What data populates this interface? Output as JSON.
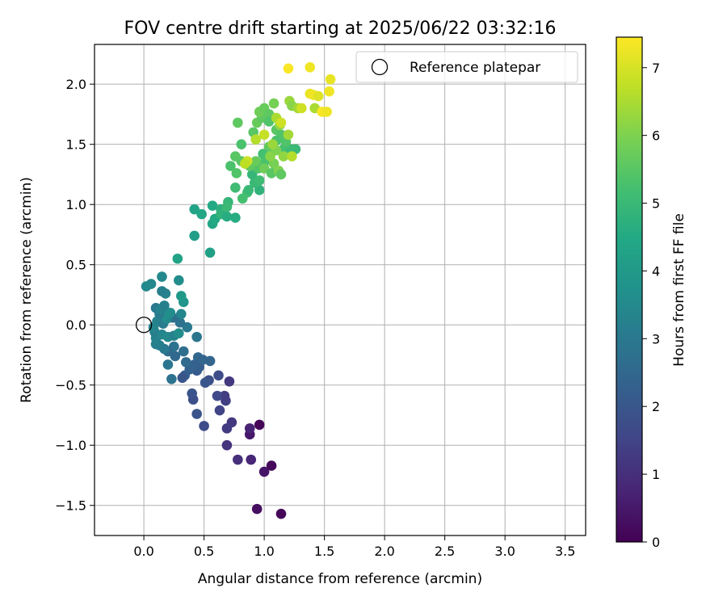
{
  "chart_data": {
    "type": "scatter",
    "title": "FOV centre drift starting at 2025/06/22 03:32:16",
    "xlabel": "Angular distance from reference (arcmin)",
    "ylabel": "Rotation from reference (arcmin)",
    "xlim": [
      -0.41,
      3.67
    ],
    "ylim": [
      -1.75,
      2.33
    ],
    "x_ticks": [
      0.0,
      0.5,
      1.0,
      1.5,
      2.0,
      2.5,
      3.0,
      3.5
    ],
    "x_tick_labels": [
      "0.0",
      "0.5",
      "1.0",
      "1.5",
      "2.0",
      "2.5",
      "3.0",
      "3.5"
    ],
    "y_ticks": [
      -1.5,
      -1.0,
      -0.5,
      0.0,
      0.5,
      1.0,
      1.5,
      2.0
    ],
    "y_tick_labels": [
      "−1.5",
      "−1.0",
      "−0.5",
      "0.0",
      "0.5",
      "1.0",
      "1.5",
      "2.0"
    ],
    "grid": true,
    "legend": {
      "position": "upper-right",
      "entries": [
        "Reference platepar"
      ]
    },
    "reference_point": {
      "x": 0.0,
      "y": 0.0
    },
    "colorbar": {
      "label": "Hours from first FF file",
      "range": [
        0,
        7.45
      ],
      "ticks": [
        0,
        1,
        2,
        3,
        4,
        5,
        6,
        7
      ],
      "tick_labels": [
        "0",
        "1",
        "2",
        "3",
        "4",
        "5",
        "6",
        "7"
      ],
      "colormap": "viridis"
    },
    "series": [
      {
        "points": [
          {
            "x": 1.14,
            "y": -1.57,
            "h": 0.1
          },
          {
            "x": 0.94,
            "y": -1.53,
            "h": 0.3
          },
          {
            "x": 1.06,
            "y": -1.17,
            "h": 0.15
          },
          {
            "x": 0.96,
            "y": -0.83,
            "h": 0.1
          },
          {
            "x": 1.0,
            "y": -1.22,
            "h": 0.4
          },
          {
            "x": 0.88,
            "y": -0.91,
            "h": 0.5
          },
          {
            "x": 0.88,
            "y": -0.86,
            "h": 0.7
          },
          {
            "x": 0.89,
            "y": -1.12,
            "h": 0.8
          },
          {
            "x": 0.78,
            "y": -1.12,
            "h": 1.0
          },
          {
            "x": 0.69,
            "y": -1.0,
            "h": 1.1
          },
          {
            "x": 0.73,
            "y": -0.81,
            "h": 1.2
          },
          {
            "x": 0.69,
            "y": -0.86,
            "h": 1.3
          },
          {
            "x": 0.68,
            "y": -0.63,
            "h": 1.4
          },
          {
            "x": 0.71,
            "y": -0.47,
            "h": 1.2
          },
          {
            "x": 0.67,
            "y": -0.59,
            "h": 1.3
          },
          {
            "x": 0.63,
            "y": -0.71,
            "h": 1.5
          },
          {
            "x": 0.61,
            "y": -0.59,
            "h": 1.6
          },
          {
            "x": 0.62,
            "y": -0.42,
            "h": 1.7
          },
          {
            "x": 0.54,
            "y": -0.46,
            "h": 1.8
          },
          {
            "x": 0.5,
            "y": -0.84,
            "h": 1.7
          },
          {
            "x": 0.44,
            "y": -0.74,
            "h": 1.9
          },
          {
            "x": 0.41,
            "y": -0.62,
            "h": 1.8
          },
          {
            "x": 0.4,
            "y": -0.57,
            "h": 1.9
          },
          {
            "x": 0.51,
            "y": -0.48,
            "h": 2.0
          },
          {
            "x": 0.44,
            "y": -0.38,
            "h": 2.1
          },
          {
            "x": 0.46,
            "y": -0.35,
            "h": 2.2
          },
          {
            "x": 0.38,
            "y": -0.37,
            "h": 2.3
          },
          {
            "x": 0.34,
            "y": -0.42,
            "h": 2.2
          },
          {
            "x": 0.32,
            "y": -0.44,
            "h": 2.0
          },
          {
            "x": 0.55,
            "y": -0.3,
            "h": 2.4
          },
          {
            "x": 0.45,
            "y": -0.27,
            "h": 2.5
          },
          {
            "x": 0.49,
            "y": -0.29,
            "h": 2.4
          },
          {
            "x": 0.42,
            "y": -0.33,
            "h": 2.3
          },
          {
            "x": 0.35,
            "y": -0.31,
            "h": 2.6
          },
          {
            "x": 0.33,
            "y": -0.22,
            "h": 2.7
          },
          {
            "x": 0.26,
            "y": -0.26,
            "h": 2.5
          },
          {
            "x": 0.23,
            "y": -0.45,
            "h": 2.8
          },
          {
            "x": 0.2,
            "y": -0.33,
            "h": 2.9
          },
          {
            "x": 0.25,
            "y": -0.18,
            "h": 2.8
          },
          {
            "x": 0.2,
            "y": -0.22,
            "h": 2.6
          },
          {
            "x": 0.17,
            "y": -0.2,
            "h": 3.0
          },
          {
            "x": 0.13,
            "y": -0.17,
            "h": 3.1
          },
          {
            "x": 0.1,
            "y": -0.16,
            "h": 3.2
          },
          {
            "x": 0.1,
            "y": -0.11,
            "h": 3.3
          },
          {
            "x": 0.09,
            "y": -0.06,
            "h": 3.2
          },
          {
            "x": 0.08,
            "y": -0.02,
            "h": 3.4
          },
          {
            "x": 0.11,
            "y": 0.03,
            "h": 3.3
          },
          {
            "x": 0.16,
            "y": 0.01,
            "h": 3.1
          },
          {
            "x": 0.15,
            "y": -0.08,
            "h": 3.4
          },
          {
            "x": 0.2,
            "y": -0.1,
            "h": 3.5
          },
          {
            "x": 0.25,
            "y": -0.09,
            "h": 3.3
          },
          {
            "x": 0.29,
            "y": -0.07,
            "h": 3.6
          },
          {
            "x": 0.44,
            "y": -0.1,
            "h": 2.9
          },
          {
            "x": 0.36,
            "y": -0.02,
            "h": 3.0
          },
          {
            "x": 0.3,
            "y": 0.02,
            "h": 2.8
          },
          {
            "x": 0.24,
            "y": 0.06,
            "h": 2.7
          },
          {
            "x": 0.19,
            "y": 0.05,
            "h": 3.5
          },
          {
            "x": 0.22,
            "y": 0.1,
            "h": 3.6
          },
          {
            "x": 0.17,
            "y": 0.08,
            "h": 3.7
          },
          {
            "x": 0.13,
            "y": 0.09,
            "h": 3.1
          },
          {
            "x": 0.1,
            "y": 0.14,
            "h": 3.0
          },
          {
            "x": 0.14,
            "y": 0.13,
            "h": 3.3
          },
          {
            "x": 0.17,
            "y": 0.16,
            "h": 3.2
          },
          {
            "x": 0.31,
            "y": 0.09,
            "h": 3.4
          },
          {
            "x": 0.33,
            "y": 0.19,
            "h": 3.9
          },
          {
            "x": 0.31,
            "y": 0.24,
            "h": 4.0
          },
          {
            "x": 0.18,
            "y": 0.26,
            "h": 3.3
          },
          {
            "x": 0.15,
            "y": 0.28,
            "h": 3.2
          },
          {
            "x": 0.29,
            "y": 0.37,
            "h": 3.6
          },
          {
            "x": 0.15,
            "y": 0.4,
            "h": 3.5
          },
          {
            "x": 0.06,
            "y": 0.34,
            "h": 3.4
          },
          {
            "x": 0.02,
            "y": 0.32,
            "h": 3.5
          },
          {
            "x": 0.28,
            "y": 0.55,
            "h": 4.3
          },
          {
            "x": 0.55,
            "y": 0.6,
            "h": 4.2
          },
          {
            "x": 0.42,
            "y": 0.74,
            "h": 4.1
          },
          {
            "x": 0.57,
            "y": 0.84,
            "h": 4.4
          },
          {
            "x": 0.59,
            "y": 0.88,
            "h": 4.5
          },
          {
            "x": 0.42,
            "y": 0.96,
            "h": 4.3
          },
          {
            "x": 0.48,
            "y": 0.92,
            "h": 4.4
          },
          {
            "x": 0.57,
            "y": 0.99,
            "h": 4.5
          },
          {
            "x": 0.64,
            "y": 0.96,
            "h": 4.7
          },
          {
            "x": 0.64,
            "y": 0.92,
            "h": 4.8
          },
          {
            "x": 0.69,
            "y": 0.9,
            "h": 4.6
          },
          {
            "x": 0.76,
            "y": 0.89,
            "h": 4.6
          },
          {
            "x": 0.7,
            "y": 1.02,
            "h": 4.9
          },
          {
            "x": 0.69,
            "y": 0.98,
            "h": 5.0
          },
          {
            "x": 0.76,
            "y": 1.14,
            "h": 5.1
          },
          {
            "x": 0.82,
            "y": 1.05,
            "h": 5.2
          },
          {
            "x": 0.86,
            "y": 1.1,
            "h": 5.2
          },
          {
            "x": 0.87,
            "y": 1.12,
            "h": 5.0
          },
          {
            "x": 0.96,
            "y": 1.12,
            "h": 4.8
          },
          {
            "x": 0.92,
            "y": 1.18,
            "h": 5.0
          },
          {
            "x": 0.9,
            "y": 1.25,
            "h": 4.9
          },
          {
            "x": 0.96,
            "y": 1.2,
            "h": 5.1
          },
          {
            "x": 0.72,
            "y": 1.32,
            "h": 5.3
          },
          {
            "x": 0.77,
            "y": 1.26,
            "h": 5.4
          },
          {
            "x": 0.81,
            "y": 1.36,
            "h": 5.5
          },
          {
            "x": 0.76,
            "y": 1.4,
            "h": 5.5
          },
          {
            "x": 0.81,
            "y": 1.5,
            "h": 5.3
          },
          {
            "x": 0.78,
            "y": 1.68,
            "h": 5.6
          },
          {
            "x": 0.91,
            "y": 1.6,
            "h": 5.5
          },
          {
            "x": 0.94,
            "y": 1.68,
            "h": 5.7
          },
          {
            "x": 0.98,
            "y": 1.72,
            "h": 5.6
          },
          {
            "x": 0.96,
            "y": 1.77,
            "h": 5.8
          },
          {
            "x": 1.0,
            "y": 1.8,
            "h": 5.7
          },
          {
            "x": 1.04,
            "y": 1.75,
            "h": 5.6
          },
          {
            "x": 1.08,
            "y": 1.84,
            "h": 5.9
          },
          {
            "x": 1.04,
            "y": 1.69,
            "h": 5.4
          },
          {
            "x": 1.1,
            "y": 1.62,
            "h": 5.5
          },
          {
            "x": 1.14,
            "y": 1.58,
            "h": 5.4
          },
          {
            "x": 1.1,
            "y": 1.53,
            "h": 5.3
          },
          {
            "x": 1.16,
            "y": 1.46,
            "h": 5.2
          },
          {
            "x": 1.22,
            "y": 1.46,
            "h": 5.1
          },
          {
            "x": 1.26,
            "y": 1.46,
            "h": 5.0
          },
          {
            "x": 1.18,
            "y": 1.52,
            "h": 5.4
          },
          {
            "x": 1.04,
            "y": 1.48,
            "h": 5.6
          },
          {
            "x": 0.99,
            "y": 1.42,
            "h": 5.2
          },
          {
            "x": 1.0,
            "y": 1.35,
            "h": 5.3
          },
          {
            "x": 0.95,
            "y": 1.3,
            "h": 5.4
          },
          {
            "x": 0.88,
            "y": 1.32,
            "h": 5.6
          },
          {
            "x": 0.93,
            "y": 1.36,
            "h": 5.7
          },
          {
            "x": 1.0,
            "y": 1.3,
            "h": 5.8
          },
          {
            "x": 1.06,
            "y": 1.26,
            "h": 5.5
          },
          {
            "x": 1.08,
            "y": 1.34,
            "h": 5.9
          },
          {
            "x": 1.12,
            "y": 1.28,
            "h": 6.0
          },
          {
            "x": 1.14,
            "y": 1.25,
            "h": 5.6
          },
          {
            "x": 1.05,
            "y": 1.4,
            "h": 6.1
          },
          {
            "x": 1.1,
            "y": 1.45,
            "h": 6.0
          },
          {
            "x": 1.16,
            "y": 1.4,
            "h": 6.2
          },
          {
            "x": 1.23,
            "y": 1.4,
            "h": 6.6
          },
          {
            "x": 1.2,
            "y": 1.58,
            "h": 6.4
          },
          {
            "x": 1.13,
            "y": 1.66,
            "h": 6.2
          },
          {
            "x": 1.07,
            "y": 1.5,
            "h": 6.3
          },
          {
            "x": 1.0,
            "y": 1.58,
            "h": 6.8
          },
          {
            "x": 0.93,
            "y": 1.54,
            "h": 6.6
          },
          {
            "x": 0.86,
            "y": 1.36,
            "h": 6.9
          },
          {
            "x": 0.84,
            "y": 1.34,
            "h": 6.7
          },
          {
            "x": 1.1,
            "y": 1.72,
            "h": 6.5
          },
          {
            "x": 1.14,
            "y": 1.68,
            "h": 6.9
          },
          {
            "x": 1.21,
            "y": 1.86,
            "h": 6.3
          },
          {
            "x": 1.23,
            "y": 1.82,
            "h": 6.1
          },
          {
            "x": 1.28,
            "y": 1.8,
            "h": 6.4
          },
          {
            "x": 1.31,
            "y": 1.8,
            "h": 6.9
          },
          {
            "x": 1.42,
            "y": 1.8,
            "h": 6.5
          },
          {
            "x": 1.38,
            "y": 1.92,
            "h": 7.2
          },
          {
            "x": 1.41,
            "y": 1.91,
            "h": 7.3
          },
          {
            "x": 1.45,
            "y": 1.9,
            "h": 7.1
          },
          {
            "x": 1.54,
            "y": 1.94,
            "h": 7.3
          },
          {
            "x": 1.55,
            "y": 2.04,
            "h": 7.2
          },
          {
            "x": 1.38,
            "y": 2.14,
            "h": 7.3
          },
          {
            "x": 1.2,
            "y": 2.13,
            "h": 7.4
          },
          {
            "x": 1.48,
            "y": 1.77,
            "h": 7.4
          },
          {
            "x": 1.52,
            "y": 1.77,
            "h": 7.3
          }
        ]
      }
    ]
  }
}
